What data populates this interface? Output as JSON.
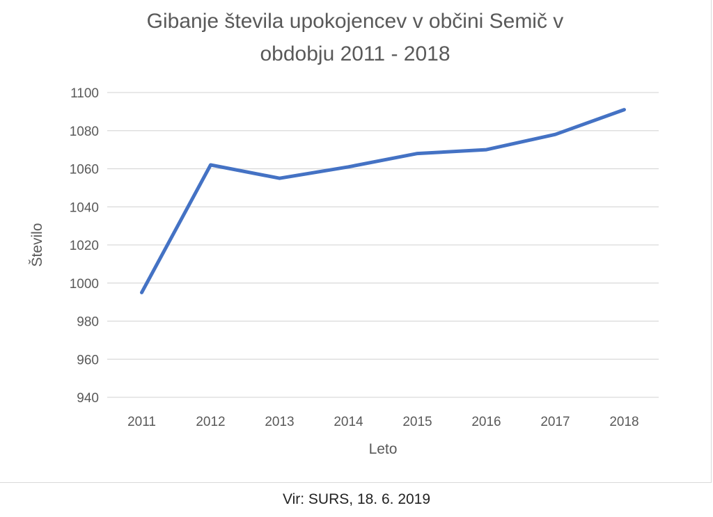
{
  "chart_data": {
    "type": "line",
    "title_lines": [
      "Gibanje števila upokojencev v občini Semič v",
      "obdobju 2011 - 2018"
    ],
    "xlabel": "Leto",
    "ylabel": "Število",
    "categories": [
      "2011",
      "2012",
      "2013",
      "2014",
      "2015",
      "2016",
      "2017",
      "2018"
    ],
    "series": [
      {
        "values": [
          995,
          1062,
          1055,
          1061,
          1068,
          1070,
          1078,
          1091
        ],
        "color": "#4472c4"
      }
    ],
    "ylim": [
      940,
      1100
    ],
    "y_ticks": [
      "940",
      "960",
      "980",
      "1000",
      "1020",
      "1040",
      "1060",
      "1080",
      "1100"
    ],
    "grid": true,
    "legend": "none"
  },
  "source_note": "Vir: SURS, 18. 6. 2019"
}
